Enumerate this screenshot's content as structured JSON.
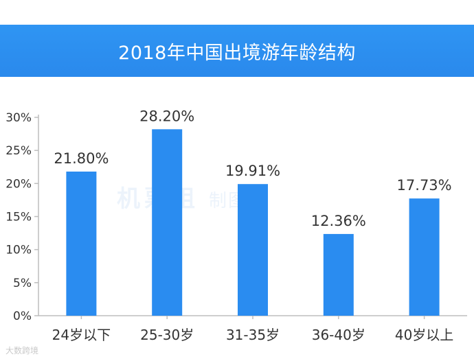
{
  "title": "2018年中国出境游年龄结构",
  "watermark": {
    "brand": "机票姐",
    "suffix": "制图",
    "corner": "大数跨境"
  },
  "colors": {
    "bar": "#2a8cf0",
    "title_bg": "#2d8ff1",
    "axis": "#bdbdbd",
    "text": "#333333"
  },
  "chart_data": {
    "type": "bar",
    "title": "2018年中国出境游年龄结构",
    "categories": [
      "24岁以下",
      "25-30岁",
      "31-35岁",
      "36-40岁",
      "40岁以上"
    ],
    "values": [
      21.8,
      28.2,
      19.91,
      12.36,
      17.73
    ],
    "value_labels": [
      "21.80%",
      "28.20%",
      "19.91%",
      "12.36%",
      "17.73%"
    ],
    "yticks": [
      0,
      5,
      10,
      15,
      20,
      25,
      30
    ],
    "ytick_labels": [
      "0%",
      "5%",
      "10%",
      "15%",
      "20%",
      "25%",
      "30%"
    ],
    "ylim": [
      0,
      30
    ],
    "xlabel": "",
    "ylabel": "",
    "grid": false,
    "legend": "none"
  }
}
